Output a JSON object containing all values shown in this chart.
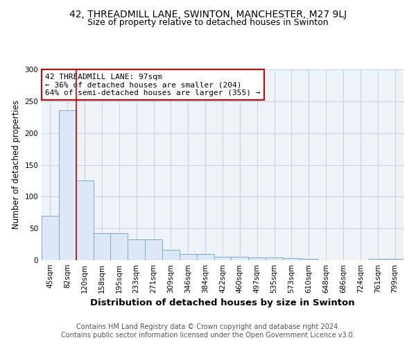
{
  "title": "42, THREADMILL LANE, SWINTON, MANCHESTER, M27 9LJ",
  "subtitle": "Size of property relative to detached houses in Swinton",
  "xlabel": "Distribution of detached houses by size in Swinton",
  "ylabel": "Number of detached properties",
  "categories": [
    "45sqm",
    "82sqm",
    "120sqm",
    "158sqm",
    "195sqm",
    "233sqm",
    "271sqm",
    "309sqm",
    "346sqm",
    "384sqm",
    "422sqm",
    "460sqm",
    "497sqm",
    "535sqm",
    "573sqm",
    "610sqm",
    "648sqm",
    "686sqm",
    "724sqm",
    "761sqm",
    "799sqm"
  ],
  "values": [
    70,
    236,
    125,
    43,
    43,
    33,
    33,
    16,
    10,
    10,
    5,
    6,
    4,
    4,
    3,
    2,
    0,
    0,
    0,
    2,
    2
  ],
  "bar_color": "#dce8f5",
  "bar_edgecolor": "#7aaacc",
  "red_line_color": "#cc0000",
  "red_line_index": 1.5,
  "annotation_text": "42 THREADMILL LANE: 97sqm\n← 36% of detached houses are smaller (204)\n64% of semi-detached houses are larger (355) →",
  "annotation_box_edgecolor": "#cc0000",
  "annotation_fontsize": 8,
  "ylim": [
    0,
    300
  ],
  "yticks": [
    0,
    50,
    100,
    150,
    200,
    250,
    300
  ],
  "footer_text": "Contains HM Land Registry data © Crown copyright and database right 2024.\nContains public sector information licensed under the Open Government Licence v3.0.",
  "title_fontsize": 10,
  "subtitle_fontsize": 9,
  "xlabel_fontsize": 9.5,
  "ylabel_fontsize": 8.5,
  "tick_fontsize": 7.5,
  "footer_fontsize": 7,
  "background_color": "#ffffff",
  "plot_bg_color": "#eef3f8",
  "grid_color": "#c5d5e5"
}
